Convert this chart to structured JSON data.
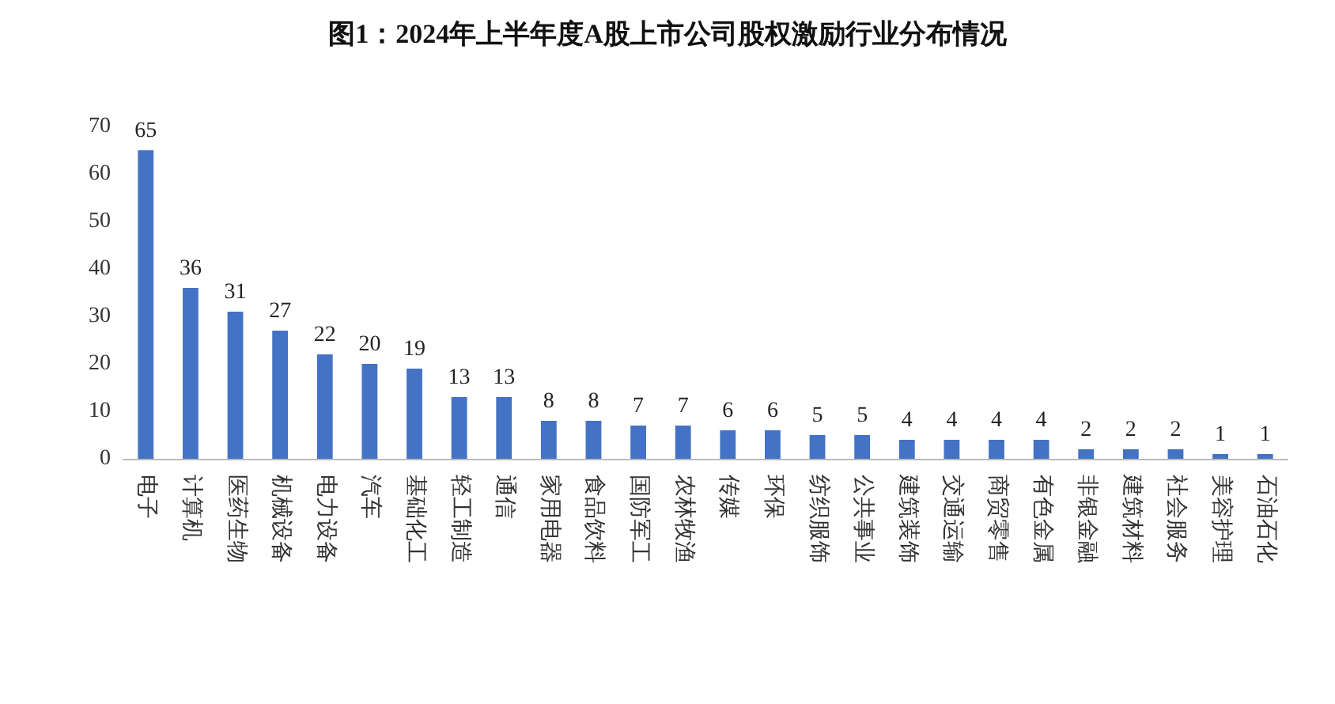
{
  "chart_data": {
    "type": "bar",
    "title": "图1：2024年上半年度A股上市公司股权激励行业分布情况",
    "categories": [
      "电子",
      "计算机",
      "医药生物",
      "机械设备",
      "电力设备",
      "汽车",
      "基础化工",
      "轻工制造",
      "通信",
      "家用电器",
      "食品饮料",
      "国防军工",
      "农林牧渔",
      "传媒",
      "环保",
      "纺织服饰",
      "公共事业",
      "建筑装饰",
      "交通运输",
      "商贸零售",
      "有色金属",
      "非银金融",
      "建筑材料",
      "社会服务",
      "美容护理",
      "石油石化"
    ],
    "values": [
      65,
      36,
      31,
      27,
      22,
      20,
      19,
      13,
      13,
      8,
      8,
      7,
      7,
      6,
      6,
      5,
      5,
      4,
      4,
      4,
      4,
      2,
      2,
      2,
      1,
      1
    ],
    "color": "#4472c4",
    "ylim": [
      0,
      70
    ],
    "yticks": [
      0,
      10,
      20,
      30,
      40,
      50,
      60,
      70
    ],
    "grid": false,
    "data_labels": true
  }
}
